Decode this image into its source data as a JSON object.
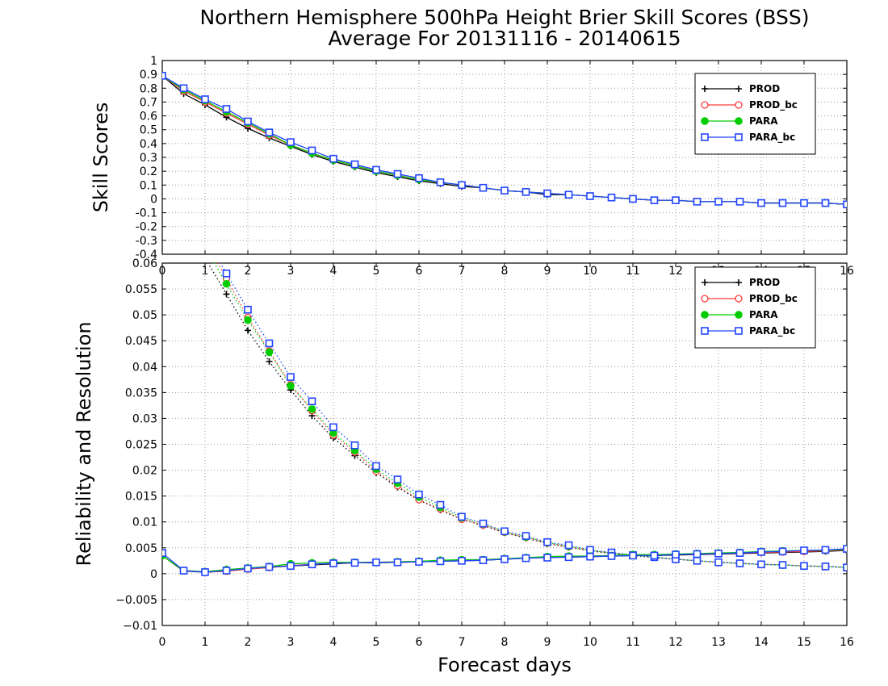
{
  "title_line1": "Northern Hemisphere 500hPa Height Brier Skill Scores (BSS)",
  "title_line2": "Average For 20131116 - 20140615",
  "colors": {
    "PROD": "#000000",
    "PROD_bc": "#ff3b3b",
    "PARA": "#00cc00",
    "PARA_bc": "#2244ff"
  },
  "chart_data": [
    {
      "type": "line",
      "ylabel": "Skill Scores",
      "xlabel": "",
      "xlim": [
        0,
        16
      ],
      "ylim": [
        -0.4,
        1
      ],
      "x_ticks": [
        "0",
        "1",
        "2",
        "3",
        "4",
        "5",
        "6",
        "7",
        "8",
        "9",
        "10",
        "11",
        "12",
        "13",
        "14",
        "15",
        "16"
      ],
      "y_ticks": [
        "-0.4",
        "-0.3",
        "-0.2",
        "-0.1",
        "0",
        "0.1",
        "0.2",
        "0.3",
        "0.4",
        "0.5",
        "0.6",
        "0.7",
        "0.8",
        "0.9",
        "1"
      ],
      "grid": true,
      "legend_position": "top-right",
      "x": [
        0,
        0.5,
        1,
        1.5,
        2,
        2.5,
        3,
        3.5,
        4,
        4.5,
        5,
        5.5,
        6,
        6.5,
        7,
        7.5,
        8,
        8.5,
        9,
        9.5,
        10,
        10.5,
        11,
        11.5,
        12,
        12.5,
        13,
        13.5,
        14,
        14.5,
        15,
        15.5,
        16
      ],
      "series": [
        {
          "name": "PROD",
          "marker": "plus",
          "values": [
            0.89,
            0.76,
            0.68,
            0.59,
            0.51,
            0.44,
            0.38,
            0.32,
            0.27,
            0.23,
            0.19,
            0.16,
            0.13,
            0.11,
            0.09,
            0.08,
            0.06,
            0.05,
            0.03,
            0.03,
            0.02,
            0.01,
            0.0,
            -0.01,
            -0.01,
            -0.02,
            -0.02,
            -0.02,
            -0.03,
            -0.03,
            -0.03,
            -0.03,
            -0.04
          ]
        },
        {
          "name": "PROD_bc",
          "marker": "circle",
          "values": [
            0.89,
            0.78,
            0.7,
            0.62,
            0.54,
            0.46,
            0.39,
            0.33,
            0.28,
            0.24,
            0.2,
            0.17,
            0.14,
            0.12,
            0.1,
            0.08,
            0.06,
            0.05,
            0.04,
            0.03,
            0.02,
            0.01,
            0.0,
            -0.01,
            -0.01,
            -0.02,
            -0.02,
            -0.02,
            -0.03,
            -0.03,
            -0.03,
            -0.03,
            -0.04
          ]
        },
        {
          "name": "PARA",
          "marker": "dot",
          "values": [
            0.89,
            0.79,
            0.71,
            0.63,
            0.55,
            0.47,
            0.39,
            0.33,
            0.28,
            0.24,
            0.2,
            0.17,
            0.14,
            0.12,
            0.1,
            0.08,
            0.06,
            0.05,
            0.04,
            0.03,
            0.02,
            0.01,
            0.0,
            -0.01,
            -0.01,
            -0.02,
            -0.02,
            -0.02,
            -0.03,
            -0.03,
            -0.03,
            -0.03,
            -0.04
          ]
        },
        {
          "name": "PARA_bc",
          "marker": "square",
          "values": [
            0.89,
            0.8,
            0.72,
            0.65,
            0.56,
            0.48,
            0.41,
            0.35,
            0.29,
            0.25,
            0.21,
            0.18,
            0.15,
            0.12,
            0.1,
            0.08,
            0.06,
            0.05,
            0.04,
            0.03,
            0.02,
            0.01,
            0.0,
            -0.01,
            -0.01,
            -0.02,
            -0.02,
            -0.02,
            -0.03,
            -0.03,
            -0.03,
            -0.03,
            -0.04
          ]
        }
      ]
    },
    {
      "type": "line",
      "ylabel": "Reliability and Resolution",
      "xlabel": "Forecast days",
      "xlim": [
        0,
        16
      ],
      "ylim": [
        -0.01,
        0.06
      ],
      "x_ticks": [
        "0",
        "1",
        "2",
        "3",
        "4",
        "5",
        "6",
        "7",
        "8",
        "9",
        "10",
        "11",
        "12",
        "13",
        "14",
        "15",
        "16"
      ],
      "y_ticks": [
        "−0.01",
        "−0.005",
        "0",
        "0.005",
        "0.01",
        "0.015",
        "0.02",
        "0.025",
        "0.03",
        "0.035",
        "0.04",
        "0.045",
        "0.05",
        "0.055",
        "0.06"
      ],
      "grid": true,
      "legend_position": "top-right",
      "x": [
        0,
        0.5,
        1,
        1.5,
        2,
        2.5,
        3,
        3.5,
        4,
        4.5,
        5,
        5.5,
        6,
        6.5,
        7,
        7.5,
        8,
        8.5,
        9,
        9.5,
        10,
        10.5,
        11,
        11.5,
        12,
        12.5,
        13,
        13.5,
        14,
        14.5,
        15,
        15.5,
        16
      ],
      "series": [
        {
          "name": "PROD",
          "group": "resolution",
          "marker": "plus",
          "values": [
            null,
            null,
            null,
            0.054,
            0.047,
            0.041,
            0.0355,
            0.0305,
            0.0262,
            0.0228,
            0.0195,
            0.0167,
            0.0142,
            0.0123,
            0.0105,
            0.0093,
            0.0079,
            0.0069,
            0.0058,
            0.0051,
            0.0044,
            0.0039,
            0.0035,
            0.0031,
            0.0028,
            0.0025,
            0.0022,
            0.002,
            0.0018,
            0.0017,
            0.0015,
            0.0014,
            0.0012
          ]
        },
        {
          "name": "PROD_bc",
          "group": "resolution",
          "marker": "circle",
          "values": [
            null,
            null,
            null,
            0.057,
            0.0495,
            0.043,
            0.0365,
            0.0315,
            0.0268,
            0.0235,
            0.0198,
            0.017,
            0.0143,
            0.0125,
            0.0105,
            0.0094,
            0.008,
            0.007,
            0.0059,
            0.0052,
            0.0045,
            0.004,
            0.0036,
            0.0032,
            0.0028,
            0.0025,
            0.0022,
            0.002,
            0.0018,
            0.0017,
            0.0015,
            0.0014,
            0.0012
          ]
        },
        {
          "name": "PARA",
          "group": "resolution",
          "marker": "dot",
          "values": [
            null,
            null,
            null,
            0.056,
            0.049,
            0.0428,
            0.0363,
            0.0318,
            0.0272,
            0.0238,
            0.0202,
            0.0175,
            0.0148,
            0.0128,
            0.0108,
            0.0096,
            0.0081,
            0.0071,
            0.006,
            0.0053,
            0.0045,
            0.004,
            0.0036,
            0.0032,
            0.0028,
            0.0025,
            0.0022,
            0.002,
            0.0018,
            0.0017,
            0.0015,
            0.0014,
            0.0012
          ]
        },
        {
          "name": "PARA_bc",
          "group": "resolution",
          "marker": "square",
          "values": [
            null,
            null,
            null,
            0.058,
            0.051,
            0.0445,
            0.038,
            0.0333,
            0.0283,
            0.0248,
            0.0208,
            0.0182,
            0.0153,
            0.0133,
            0.011,
            0.0097,
            0.0082,
            0.0073,
            0.0061,
            0.0055,
            0.0046,
            0.0041,
            0.0036,
            0.0032,
            0.0028,
            0.0025,
            0.0022,
            0.002,
            0.0018,
            0.0017,
            0.0015,
            0.0014,
            0.0012
          ]
        },
        {
          "name": "PROD",
          "group": "reliability",
          "marker": "plus",
          "values": [
            0.0035,
            0.0005,
            0.0003,
            0.0005,
            0.0009,
            0.0012,
            0.0015,
            0.0017,
            0.0019,
            0.0021,
            0.0021,
            0.0022,
            0.0023,
            0.0024,
            0.0025,
            0.0026,
            0.0028,
            0.003,
            0.0032,
            0.0032,
            0.0033,
            0.0034,
            0.0035,
            0.0035,
            0.0036,
            0.0037,
            0.0038,
            0.0039,
            0.004,
            0.0041,
            0.0042,
            0.0043,
            0.0045
          ]
        },
        {
          "name": "PROD_bc",
          "group": "reliability",
          "marker": "circle",
          "values": [
            0.0035,
            0.0006,
            0.0003,
            0.0005,
            0.0009,
            0.0012,
            0.0016,
            0.0018,
            0.002,
            0.0021,
            0.0022,
            0.0023,
            0.0024,
            0.0025,
            0.0026,
            0.0027,
            0.0029,
            0.003,
            0.0032,
            0.0033,
            0.0034,
            0.0035,
            0.0036,
            0.0036,
            0.0037,
            0.0038,
            0.0039,
            0.004,
            0.0041,
            0.0042,
            0.0043,
            0.0044,
            0.0046
          ]
        },
        {
          "name": "PARA",
          "group": "reliability",
          "marker": "dot",
          "values": [
            0.0035,
            0.0006,
            0.0004,
            0.0008,
            0.0011,
            0.0014,
            0.0019,
            0.0021,
            0.0022,
            0.0022,
            0.0022,
            0.0023,
            0.0024,
            0.0026,
            0.0027,
            0.0027,
            0.0029,
            0.0031,
            0.0033,
            0.0034,
            0.0034,
            0.0035,
            0.0037,
            0.0037,
            0.0038,
            0.0039,
            0.004,
            0.0041,
            0.0043,
            0.0044,
            0.0045,
            0.0045,
            0.0047
          ]
        },
        {
          "name": "PARA_bc",
          "group": "reliability",
          "marker": "square",
          "values": [
            0.004,
            0.0006,
            0.0003,
            0.0006,
            0.001,
            0.0013,
            0.0015,
            0.0018,
            0.002,
            0.0021,
            0.0022,
            0.0022,
            0.0023,
            0.0024,
            0.0025,
            0.0026,
            0.0028,
            0.003,
            0.0031,
            0.0032,
            0.0033,
            0.0034,
            0.0035,
            0.0035,
            0.0037,
            0.0038,
            0.0039,
            0.004,
            0.0042,
            0.0043,
            0.0045,
            0.0046,
            0.0048
          ]
        }
      ]
    }
  ]
}
